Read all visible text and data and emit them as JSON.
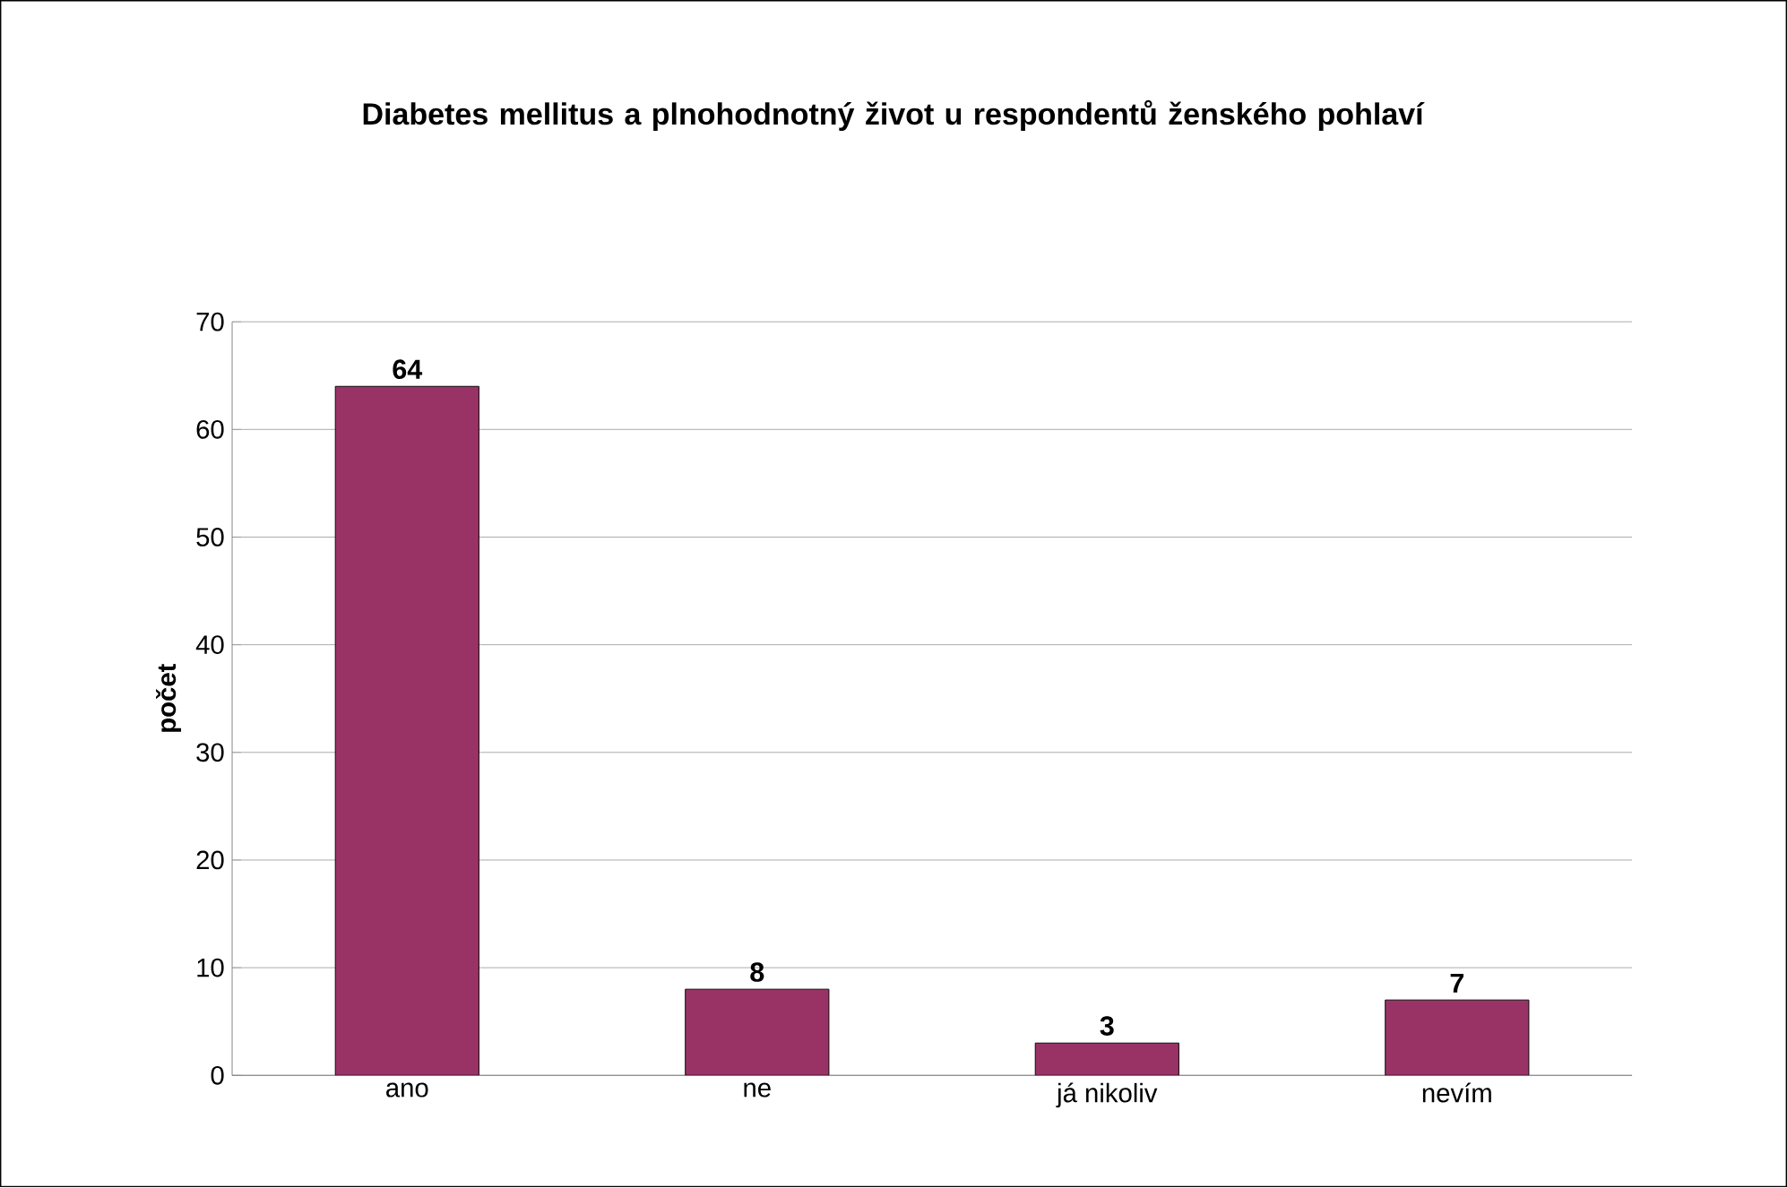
{
  "chart_data": {
    "type": "bar",
    "title": "Diabetes mellitus a plnohodnotný život u respondentů ženského pohlaví",
    "ylabel": "počet",
    "categories": [
      "ano",
      "ne",
      "já nikoliv",
      "nevím"
    ],
    "values": [
      64,
      8,
      3,
      7
    ],
    "color": "#993366",
    "ylim": [
      0,
      70
    ],
    "yticks": [
      0,
      10,
      20,
      30,
      40,
      50,
      60,
      70
    ],
    "grid": "y",
    "data_labels": true
  }
}
